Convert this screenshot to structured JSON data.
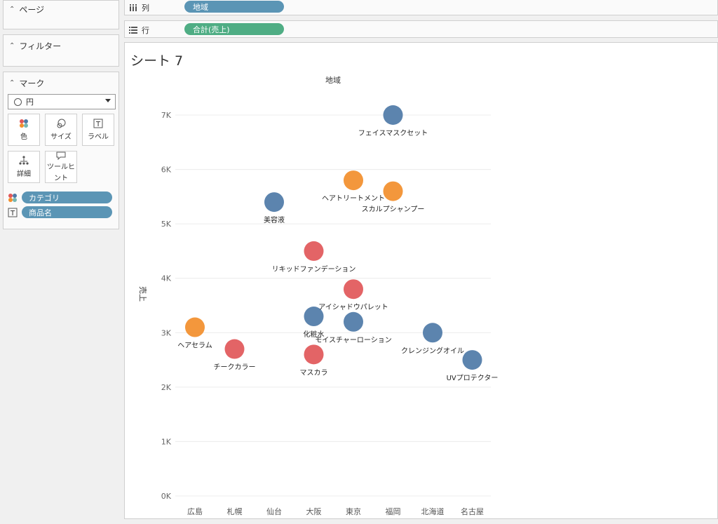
{
  "sidebar": {
    "pages_label": "ページ",
    "filters_label": "フィルター",
    "marks_label": "マーク",
    "mark_type": "円",
    "buttons": {
      "color": "色",
      "size": "サイズ",
      "label": "ラベル",
      "detail": "詳細",
      "tooltip_line1": "ツールヒ",
      "tooltip_line2": "ント"
    },
    "pills": {
      "color_field": "カテゴリ",
      "label_field": "商品名"
    }
  },
  "shelves": {
    "columns_label": "列",
    "columns_pill": "地域",
    "rows_label": "行",
    "rows_pill": "合計(売上)"
  },
  "sheet_title": "シート 7",
  "colors": {
    "blue": "#4e79a7",
    "orange": "#f28e2b",
    "red": "#e15759",
    "pill_blue": "#5b95b5",
    "pill_green": "#4fad84"
  },
  "chart_data": {
    "type": "scatter",
    "title": "",
    "x_header": "地域",
    "ylabel": "売上",
    "categories": [
      "広島",
      "札幌",
      "仙台",
      "大阪",
      "東京",
      "福岡",
      "北海道",
      "名古屋"
    ],
    "yticks": [
      "0K",
      "1K",
      "2K",
      "3K",
      "4K",
      "5K",
      "6K",
      "7K"
    ],
    "ylim": [
      0,
      7000
    ],
    "grid": true,
    "points": [
      {
        "region": "広島",
        "value": 3100,
        "label": "ヘアセラム",
        "color": "orange"
      },
      {
        "region": "札幌",
        "value": 2700,
        "label": "チークカラー",
        "color": "red"
      },
      {
        "region": "仙台",
        "value": 5400,
        "label": "美容液",
        "color": "blue"
      },
      {
        "region": "大阪",
        "value": 4500,
        "label": "リキッドファンデーション",
        "color": "red"
      },
      {
        "region": "大阪",
        "value": 3300,
        "label": "化粧水",
        "color": "blue"
      },
      {
        "region": "大阪",
        "value": 2600,
        "label": "マスカラ",
        "color": "red"
      },
      {
        "region": "東京",
        "value": 5800,
        "label": "ヘアトリートメント",
        "color": "orange"
      },
      {
        "region": "東京",
        "value": 3800,
        "label": "アイシャドウパレット",
        "color": "red"
      },
      {
        "region": "東京",
        "value": 3200,
        "label": "モイスチャーローション",
        "color": "blue"
      },
      {
        "region": "福岡",
        "value": 7000,
        "label": "フェイスマスクセット",
        "color": "blue"
      },
      {
        "region": "福岡",
        "value": 5600,
        "label": "スカルプシャンプー",
        "color": "orange"
      },
      {
        "region": "北海道",
        "value": 3000,
        "label": "クレンジングオイル",
        "color": "blue"
      },
      {
        "region": "名古屋",
        "value": 2500,
        "label": "UVプロテクター",
        "color": "blue"
      }
    ]
  }
}
